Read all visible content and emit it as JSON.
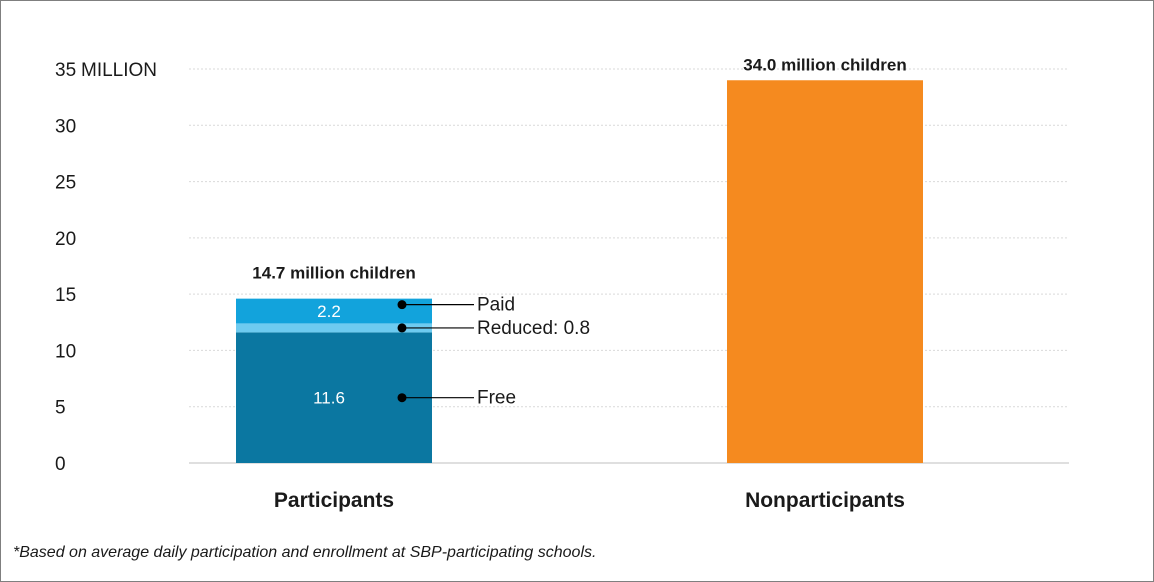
{
  "chart_data": {
    "type": "bar",
    "stacked": true,
    "categories": [
      "Participants",
      "Nonparticipants"
    ],
    "ylim": [
      0,
      35
    ],
    "yticks": [
      0,
      5,
      10,
      15,
      20,
      25,
      30,
      35
    ],
    "y_unit_label": "MILLION",
    "grid": true,
    "participants": {
      "total_label": "14.7 million children",
      "segments": [
        {
          "name": "Free",
          "value": 11.6,
          "value_label": "11.6",
          "annotation": "Free",
          "color": "#0b77a1"
        },
        {
          "name": "Reduced",
          "value": 0.8,
          "value_label": "",
          "annotation": "Reduced: 0.8",
          "color": "#6ecbf0"
        },
        {
          "name": "Paid",
          "value": 2.2,
          "value_label": "2.2",
          "annotation": "Paid",
          "color": "#12a3dc"
        }
      ]
    },
    "nonparticipants": {
      "total_label": "34.0 million children",
      "value": 34.0,
      "color": "#f58a1f"
    }
  },
  "footnote": "*Based on average daily participation and enrollment at SBP-participating schools."
}
